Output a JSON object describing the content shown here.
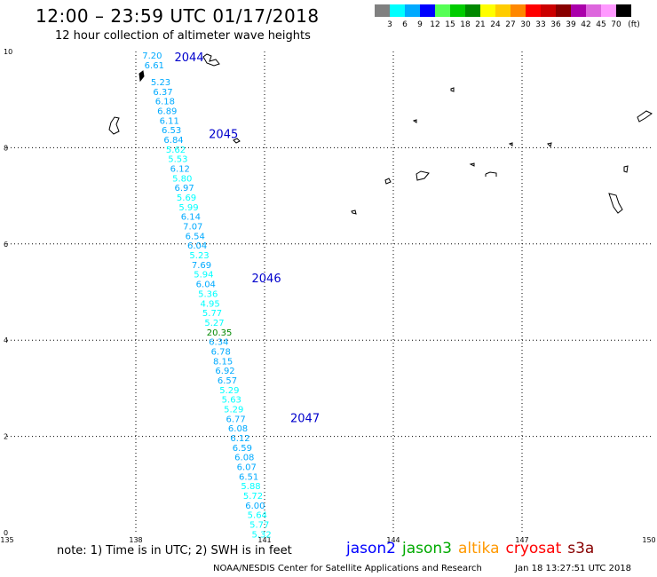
{
  "title": "12:00 – 23:59 UTC 01/17/2018",
  "subtitle": "12 hour collection of altimeter wave heights",
  "legend": {
    "unit": "(ft)",
    "bins": [
      {
        "label": "3",
        "color": "#808080"
      },
      {
        "label": "6",
        "color": "#00ffff"
      },
      {
        "label": "9",
        "color": "#00aaff"
      },
      {
        "label": "12",
        "color": "#0000ff"
      },
      {
        "label": "15",
        "color": "#55ff55"
      },
      {
        "label": "18",
        "color": "#00cc00"
      },
      {
        "label": "21",
        "color": "#008800"
      },
      {
        "label": "24",
        "color": "#ffff00"
      },
      {
        "label": "27",
        "color": "#ffcc00"
      },
      {
        "label": "30",
        "color": "#ff8800"
      },
      {
        "label": "33",
        "color": "#ff0000"
      },
      {
        "label": "36",
        "color": "#cc0000"
      },
      {
        "label": "39",
        "color": "#880000"
      },
      {
        "label": "42",
        "color": "#aa00aa"
      },
      {
        "label": "45",
        "color": "#dd66dd"
      },
      {
        "label": "70",
        "color": "#ff99ff"
      },
      {
        "label": "",
        "color": "#000000"
      }
    ]
  },
  "map": {
    "lon_range": [
      135,
      150
    ],
    "lat_range": [
      0,
      10
    ],
    "x_ticks": [
      "135",
      "138",
      "141",
      "144",
      "147",
      "150"
    ],
    "y_ticks": [
      "10",
      "8",
      "6",
      "4",
      "2",
      "0"
    ],
    "grid": "dotted"
  },
  "passes": [
    {
      "label": "2044",
      "lon": 138.9,
      "lat": 9.8
    },
    {
      "label": "2045",
      "lon": 139.7,
      "lat": 8.2
    },
    {
      "label": "2046",
      "lon": 140.7,
      "lat": 5.2
    },
    {
      "label": "2047",
      "lon": 141.6,
      "lat": 2.3
    }
  ],
  "track": [
    {
      "lon": 138.15,
      "lat": 9.85,
      "v": "7.20",
      "color": "#00aaff"
    },
    {
      "lon": 138.2,
      "lat": 9.65,
      "v": "6.61",
      "color": "#00aaff"
    },
    {
      "lon": 138.35,
      "lat": 9.3,
      "v": "5.23",
      "color": "#00aaff"
    },
    {
      "lon": 138.4,
      "lat": 9.1,
      "v": "6.37",
      "color": "#00aaff"
    },
    {
      "lon": 138.45,
      "lat": 8.9,
      "v": "6.18",
      "color": "#00aaff"
    },
    {
      "lon": 138.5,
      "lat": 8.7,
      "v": "6.89",
      "color": "#00aaff"
    },
    {
      "lon": 138.55,
      "lat": 8.5,
      "v": "6.11",
      "color": "#00aaff"
    },
    {
      "lon": 138.6,
      "lat": 8.3,
      "v": "6.53",
      "color": "#00aaff"
    },
    {
      "lon": 138.65,
      "lat": 8.1,
      "v": "6.84",
      "color": "#00aaff"
    },
    {
      "lon": 138.7,
      "lat": 7.9,
      "v": "5.62",
      "color": "#00ffff"
    },
    {
      "lon": 138.75,
      "lat": 7.7,
      "v": "5.53",
      "color": "#00ffff"
    },
    {
      "lon": 138.8,
      "lat": 7.5,
      "v": "6.12",
      "color": "#00aaff"
    },
    {
      "lon": 138.85,
      "lat": 7.3,
      "v": "5.80",
      "color": "#00ffff"
    },
    {
      "lon": 138.9,
      "lat": 7.1,
      "v": "6.97",
      "color": "#00aaff"
    },
    {
      "lon": 138.95,
      "lat": 6.9,
      "v": "5.69",
      "color": "#00ffff"
    },
    {
      "lon": 139.0,
      "lat": 6.7,
      "v": "5.99",
      "color": "#00ffff"
    },
    {
      "lon": 139.05,
      "lat": 6.5,
      "v": "6.14",
      "color": "#00aaff"
    },
    {
      "lon": 139.1,
      "lat": 6.3,
      "v": "7.07",
      "color": "#00aaff"
    },
    {
      "lon": 139.15,
      "lat": 6.1,
      "v": "6.54",
      "color": "#00aaff"
    },
    {
      "lon": 139.2,
      "lat": 5.9,
      "v": "6.04",
      "color": "#00aaff"
    },
    {
      "lon": 139.25,
      "lat": 5.7,
      "v": "5.23",
      "color": "#00ffff"
    },
    {
      "lon": 139.3,
      "lat": 5.5,
      "v": "7.69",
      "color": "#00aaff"
    },
    {
      "lon": 139.35,
      "lat": 5.3,
      "v": "5.94",
      "color": "#00ffff"
    },
    {
      "lon": 139.4,
      "lat": 5.1,
      "v": "6.04",
      "color": "#00aaff"
    },
    {
      "lon": 139.45,
      "lat": 4.9,
      "v": "5.36",
      "color": "#00ffff"
    },
    {
      "lon": 139.5,
      "lat": 4.7,
      "v": "4.95",
      "color": "#00ffff"
    },
    {
      "lon": 139.55,
      "lat": 4.5,
      "v": "5.77",
      "color": "#00ffff"
    },
    {
      "lon": 139.6,
      "lat": 4.3,
      "v": "5.27",
      "color": "#00ffff"
    },
    {
      "lon": 139.65,
      "lat": 4.1,
      "v": "20.35",
      "color": "#008800"
    },
    {
      "lon": 139.7,
      "lat": 3.9,
      "v": "6.34",
      "color": "#00aaff"
    },
    {
      "lon": 139.75,
      "lat": 3.7,
      "v": "6.78",
      "color": "#00aaff"
    },
    {
      "lon": 139.8,
      "lat": 3.5,
      "v": "8.15",
      "color": "#00aaff"
    },
    {
      "lon": 139.85,
      "lat": 3.3,
      "v": "6.92",
      "color": "#00aaff"
    },
    {
      "lon": 139.9,
      "lat": 3.1,
      "v": "6.57",
      "color": "#00aaff"
    },
    {
      "lon": 139.95,
      "lat": 2.9,
      "v": "5.29",
      "color": "#00ffff"
    },
    {
      "lon": 140.0,
      "lat": 2.7,
      "v": "5.63",
      "color": "#00ffff"
    },
    {
      "lon": 140.05,
      "lat": 2.5,
      "v": "5.29",
      "color": "#00ffff"
    },
    {
      "lon": 140.1,
      "lat": 2.3,
      "v": "6.77",
      "color": "#00aaff"
    },
    {
      "lon": 140.15,
      "lat": 2.1,
      "v": "6.08",
      "color": "#00aaff"
    },
    {
      "lon": 140.2,
      "lat": 1.9,
      "v": "6.12",
      "color": "#00aaff"
    },
    {
      "lon": 140.25,
      "lat": 1.7,
      "v": "6.59",
      "color": "#00aaff"
    },
    {
      "lon": 140.3,
      "lat": 1.5,
      "v": "6.08",
      "color": "#00aaff"
    },
    {
      "lon": 140.35,
      "lat": 1.3,
      "v": "6.07",
      "color": "#00aaff"
    },
    {
      "lon": 140.4,
      "lat": 1.1,
      "v": "6.51",
      "color": "#00aaff"
    },
    {
      "lon": 140.45,
      "lat": 0.9,
      "v": "5.88",
      "color": "#00ffff"
    },
    {
      "lon": 140.5,
      "lat": 0.7,
      "v": "5.72",
      "color": "#00ffff"
    },
    {
      "lon": 140.55,
      "lat": 0.5,
      "v": "6.00",
      "color": "#00aaff"
    },
    {
      "lon": 140.6,
      "lat": 0.3,
      "v": "5.64",
      "color": "#00ffff"
    },
    {
      "lon": 140.65,
      "lat": 0.1,
      "v": "5.77",
      "color": "#00ffff"
    },
    {
      "lon": 140.7,
      "lat": -0.1,
      "v": "5.32",
      "color": "#00ffff"
    }
  ],
  "note": "note: 1) Time is in UTC; 2) SWH is in feet",
  "satellites": [
    {
      "name": "jason2",
      "color": "#0000ff"
    },
    {
      "name": "jason3",
      "color": "#00aa00"
    },
    {
      "name": "altika",
      "color": "#ff9900"
    },
    {
      "name": "cryosat",
      "color": "#ff0000"
    },
    {
      "name": "s3a",
      "color": "#880000"
    }
  ],
  "footer": {
    "left": "NOAA/NESDIS Center for Satellite Applications and Research",
    "right": "Jan 18 13:27:51 UTC 2018"
  }
}
